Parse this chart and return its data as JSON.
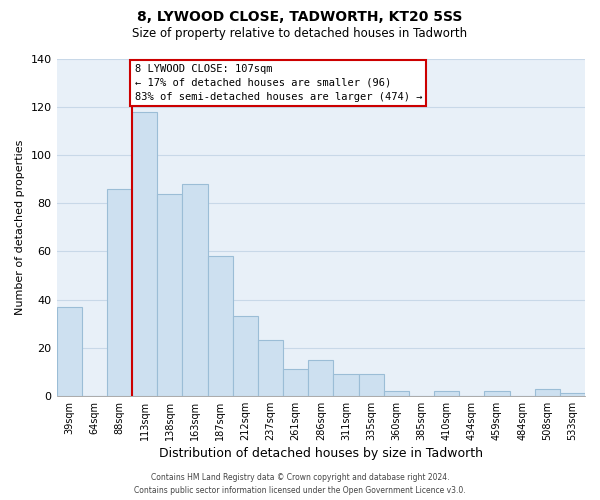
{
  "title": "8, LYWOOD CLOSE, TADWORTH, KT20 5SS",
  "subtitle": "Size of property relative to detached houses in Tadworth",
  "xlabel": "Distribution of detached houses by size in Tadworth",
  "ylabel": "Number of detached properties",
  "bar_color": "#cde0f0",
  "bar_edge_color": "#9bbdd6",
  "plot_bg_color": "#e8f0f8",
  "categories": [
    "39sqm",
    "64sqm",
    "88sqm",
    "113sqm",
    "138sqm",
    "163sqm",
    "187sqm",
    "212sqm",
    "237sqm",
    "261sqm",
    "286sqm",
    "311sqm",
    "335sqm",
    "360sqm",
    "385sqm",
    "410sqm",
    "434sqm",
    "459sqm",
    "484sqm",
    "508sqm",
    "533sqm"
  ],
  "values": [
    37,
    0,
    86,
    118,
    84,
    88,
    58,
    33,
    23,
    11,
    15,
    9,
    9,
    2,
    0,
    2,
    0,
    2,
    0,
    3,
    1
  ],
  "ylim": [
    0,
    140
  ],
  "yticks": [
    0,
    20,
    40,
    60,
    80,
    100,
    120,
    140
  ],
  "vline_color": "#cc0000",
  "annotation_title": "8 LYWOOD CLOSE: 107sqm",
  "annotation_line1": "← 17% of detached houses are smaller (96)",
  "annotation_line2": "83% of semi-detached houses are larger (474) →",
  "annotation_box_color": "#ffffff",
  "annotation_box_edge": "#cc0000",
  "footer_line1": "Contains HM Land Registry data © Crown copyright and database right 2024.",
  "footer_line2": "Contains public sector information licensed under the Open Government Licence v3.0.",
  "background_color": "#ffffff",
  "grid_color": "#c8d8e8"
}
